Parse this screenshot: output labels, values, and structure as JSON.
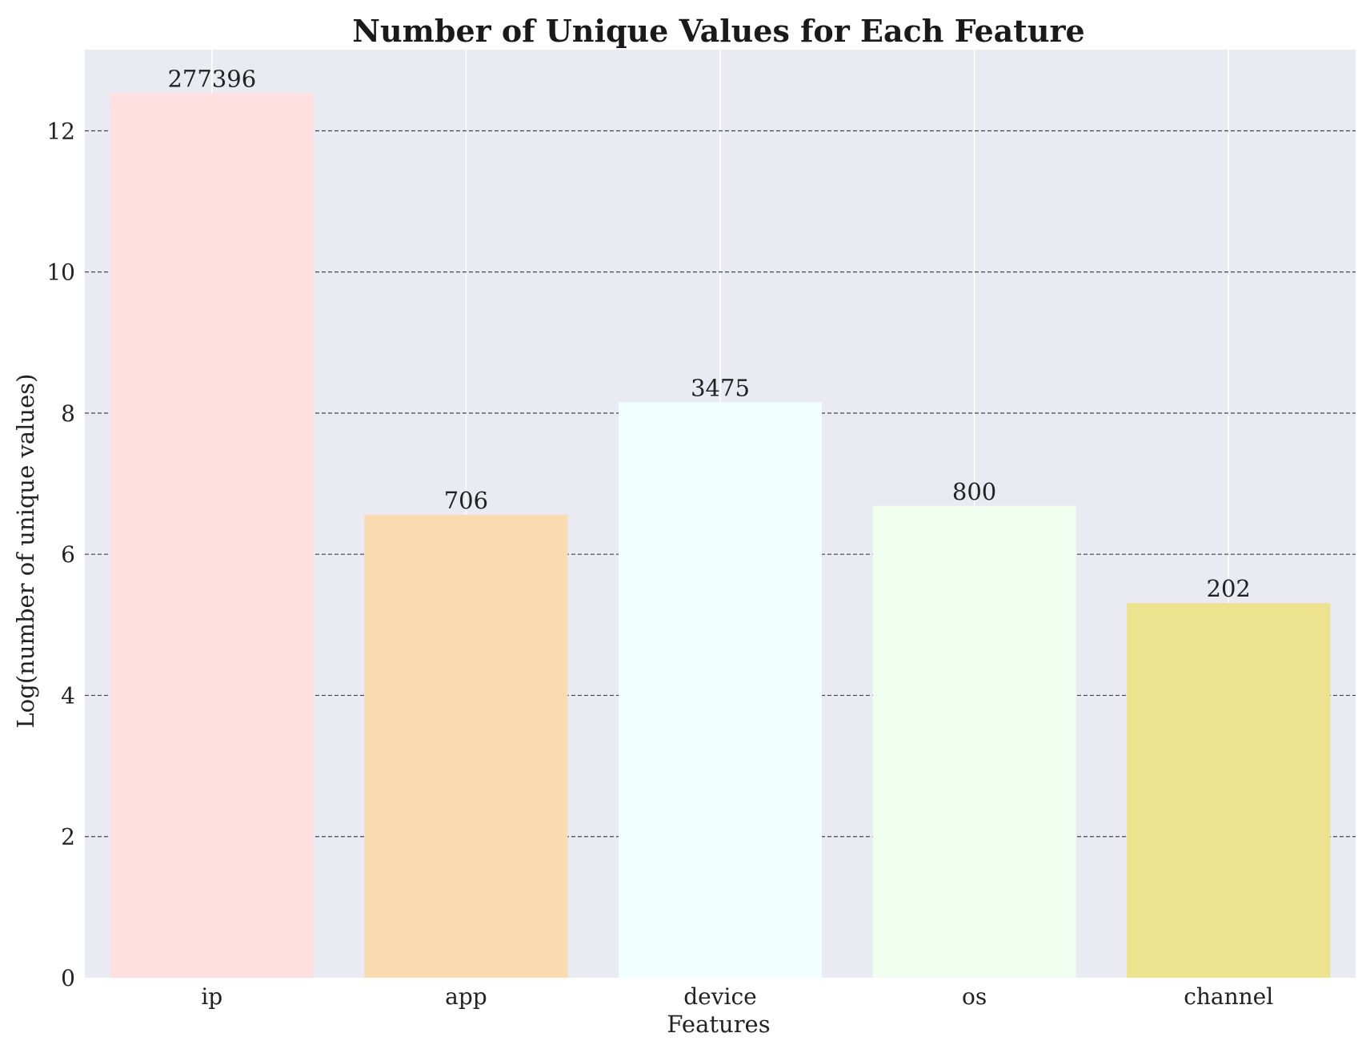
{
  "chart_data": {
    "type": "bar",
    "title": "Number of Unique Values for Each Feature",
    "xlabel": "Features",
    "ylabel": "Log(number of unique values)",
    "categories": [
      "ip",
      "app",
      "device",
      "os",
      "channel"
    ],
    "values": [
      12.533,
      6.56,
      8.153,
      6.685,
      5.308
    ],
    "data_labels": [
      "277396",
      "706",
      "3475",
      "800",
      "202"
    ],
    "bar_colors": [
      "#ffe0e0",
      "#fadab0",
      "#f0ffff",
      "#f0fff0",
      "#ede38e"
    ],
    "ylim": [
      0,
      13.15
    ],
    "yticks": [
      0,
      2,
      4,
      6,
      8,
      10,
      12
    ],
    "grid": true,
    "legend": "none",
    "plot_background": "#eaeaf2",
    "gridline_color": "#ffffff",
    "horizontal_gridline_style": "dashed"
  }
}
